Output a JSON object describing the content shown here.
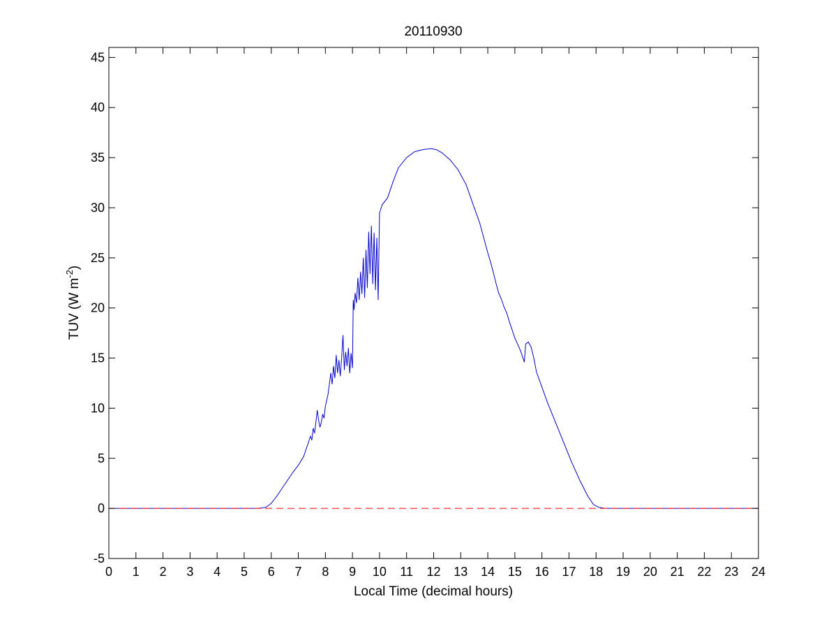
{
  "chart_data": {
    "type": "line",
    "title": "20110930",
    "xlabel": "Local Time (decimal hours)",
    "ylabel_main": "TUV (W m",
    "ylabel_sup": "-2",
    "ylabel_close": ")",
    "xlim": [
      0,
      24
    ],
    "ylim": [
      -5,
      46
    ],
    "xticks": [
      "0",
      "1",
      "2",
      "3",
      "4",
      "5",
      "6",
      "7",
      "8",
      "9",
      "10",
      "11",
      "12",
      "13",
      "14",
      "15",
      "16",
      "17",
      "18",
      "19",
      "20",
      "21",
      "22",
      "23",
      "24"
    ],
    "yticks": [
      "-5",
      "0",
      "5",
      "10",
      "15",
      "20",
      "25",
      "30",
      "35",
      "40",
      "45"
    ],
    "grid": false,
    "legend": "none",
    "series": [
      {
        "color": "#0000cc",
        "style": "solid",
        "x": [
          0,
          5.5,
          5.8,
          6.0,
          6.2,
          6.4,
          6.6,
          6.8,
          7.0,
          7.2,
          7.3,
          7.45,
          7.5,
          7.55,
          7.6,
          7.65,
          7.7,
          7.75,
          7.8,
          7.85,
          7.9,
          7.95,
          8.0,
          8.1,
          8.2,
          8.25,
          8.3,
          8.35,
          8.4,
          8.45,
          8.5,
          8.55,
          8.6,
          8.65,
          8.7,
          8.75,
          8.8,
          8.85,
          8.9,
          8.95,
          9.0,
          9.03,
          9.06,
          9.1,
          9.15,
          9.2,
          9.25,
          9.3,
          9.35,
          9.4,
          9.45,
          9.5,
          9.55,
          9.6,
          9.65,
          9.7,
          9.75,
          9.8,
          9.85,
          9.9,
          9.95,
          10.0,
          10.1,
          10.3,
          10.5,
          10.7,
          11.0,
          11.3,
          11.6,
          11.9,
          12.1,
          12.3,
          12.6,
          12.9,
          13.2,
          13.5,
          13.7,
          13.9,
          14.0,
          14.1,
          14.2,
          14.3,
          14.4,
          14.5,
          14.6,
          14.7,
          14.8,
          14.9,
          15.0,
          15.1,
          15.2,
          15.3,
          15.35,
          15.4,
          15.5,
          15.6,
          15.7,
          15.8,
          16.0,
          16.2,
          16.5,
          16.8,
          17.1,
          17.4,
          17.7,
          17.9,
          18.1,
          18.3,
          18.5,
          19.0,
          24
        ],
        "y": [
          0,
          0,
          0.1,
          0.5,
          1.2,
          2.0,
          2.8,
          3.6,
          4.3,
          5.2,
          6.0,
          7.2,
          6.8,
          8.0,
          7.5,
          8.6,
          9.8,
          8.8,
          8.1,
          8.6,
          9.4,
          9.0,
          10.2,
          11.4,
          13.5,
          12.4,
          14.2,
          13.0,
          15.3,
          13.5,
          14.8,
          13.2,
          15.0,
          17.3,
          13.8,
          15.6,
          14.2,
          16.0,
          13.5,
          15.5,
          14.0,
          20.8,
          19.8,
          21.5,
          20.5,
          23.0,
          20.8,
          23.6,
          21.4,
          25.0,
          21.0,
          25.8,
          22.0,
          27.6,
          23.4,
          28.2,
          22.4,
          27.5,
          21.8,
          27.0,
          20.8,
          29.5,
          30.3,
          31.0,
          32.6,
          34.0,
          35.0,
          35.6,
          35.8,
          35.9,
          35.8,
          35.5,
          34.8,
          33.8,
          32.3,
          30.0,
          28.5,
          26.5,
          25.5,
          24.6,
          23.6,
          22.5,
          21.5,
          20.9,
          20.1,
          19.5,
          18.6,
          17.8,
          17.0,
          16.4,
          15.8,
          15.0,
          14.6,
          16.4,
          16.6,
          16.1,
          15.0,
          13.6,
          12.1,
          10.6,
          8.6,
          6.6,
          4.6,
          2.8,
          1.2,
          0.4,
          0.1,
          0.02,
          0,
          0,
          0
        ]
      },
      {
        "color": "#ff0000",
        "style": "dashed",
        "x": [
          0,
          24
        ],
        "y": [
          0,
          0
        ]
      }
    ]
  }
}
